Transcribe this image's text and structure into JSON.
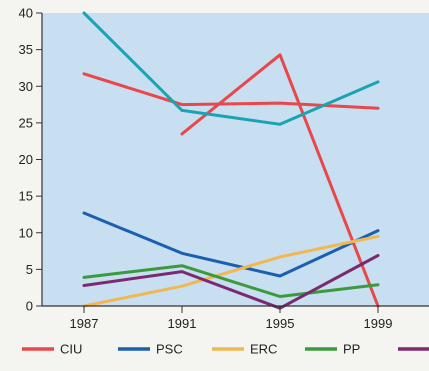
{
  "chart_data": {
    "type": "line",
    "x": [
      1987,
      1991,
      1995,
      1999
    ],
    "x_ticks": [
      "1987",
      "1991",
      "1995",
      "1999"
    ],
    "ylim": [
      0,
      40
    ],
    "y_ticks": [
      "0",
      "5",
      "10",
      "15",
      "20",
      "25",
      "30",
      "35",
      "40"
    ],
    "plot_background": "#c7dff0",
    "grid": false,
    "legend_position": "bottom",
    "series": [
      {
        "name": "CIU",
        "color": "#e8474b",
        "segments": [
          [
            [
              1987,
              31.7
            ],
            [
              1991,
              27.5
            ],
            [
              1995,
              27.7
            ],
            [
              1999,
              27.0
            ]
          ],
          [
            [
              1991,
              23.5
            ],
            [
              1995,
              34.3
            ],
            [
              1999,
              0.0
            ]
          ]
        ]
      },
      {
        "name": "",
        "color": "#1aa3b3",
        "segments": [
          [
            [
              1987,
              40.0
            ],
            [
              1991,
              26.7
            ],
            [
              1995,
              24.8
            ],
            [
              1999,
              30.6
            ]
          ]
        ]
      },
      {
        "name": "PSC",
        "color": "#1b5fae",
        "segments": [
          [
            [
              1987,
              12.7
            ],
            [
              1991,
              7.2
            ],
            [
              1995,
              4.1
            ],
            [
              1999,
              10.3
            ]
          ]
        ]
      },
      {
        "name": "ERC",
        "color": "#f0b851",
        "segments": [
          [
            [
              1987,
              0.0
            ],
            [
              1991,
              2.7
            ],
            [
              1995,
              6.7
            ],
            [
              1999,
              9.5
            ]
          ]
        ]
      },
      {
        "name": "PP",
        "color": "#3b9a3b",
        "segments": [
          [
            [
              1987,
              3.9
            ],
            [
              1991,
              5.5
            ],
            [
              1995,
              1.3
            ],
            [
              1999,
              2.9
            ]
          ]
        ]
      },
      {
        "name": "",
        "color": "#7b2a72",
        "segments": [
          [
            [
              1987,
              2.8
            ],
            [
              1991,
              4.7
            ],
            [
              1995,
              -0.3
            ],
            [
              1999,
              6.9
            ]
          ]
        ]
      }
    ],
    "legend": [
      {
        "label": "CIU",
        "color": "#e8474b"
      },
      {
        "label": "PSC",
        "color": "#1b5fae"
      },
      {
        "label": "ERC",
        "color": "#f0b851"
      },
      {
        "label": "PP",
        "color": "#3b9a3b"
      },
      {
        "label": "",
        "color": "#7b2a72"
      }
    ]
  }
}
